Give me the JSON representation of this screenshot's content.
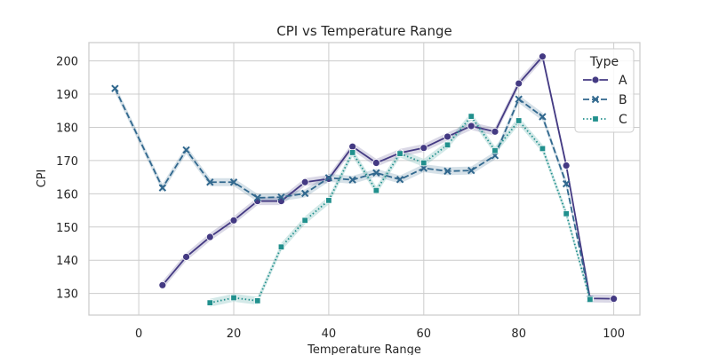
{
  "chart_data": {
    "type": "line",
    "title": "CPI vs Temperature Range",
    "xlabel": "Temperature Range",
    "ylabel": "CPI",
    "xlim": [
      -10.5,
      105.5
    ],
    "ylim": [
      123.5,
      205.5
    ],
    "xticks": [
      0,
      20,
      40,
      60,
      80,
      100
    ],
    "yticks": [
      130,
      140,
      150,
      160,
      170,
      180,
      190,
      200
    ],
    "grid": true,
    "legend": {
      "title": "Type",
      "position": "top-right"
    },
    "series": [
      {
        "name": "A",
        "color": "#443a83",
        "marker": "circle",
        "line_style": "solid",
        "points": [
          [
            5,
            132.5
          ],
          [
            10,
            141
          ],
          [
            15,
            147
          ],
          [
            20,
            152
          ],
          [
            25,
            157.8
          ],
          [
            30,
            157.8
          ],
          [
            35,
            163.5
          ],
          [
            40,
            164.5
          ],
          [
            45,
            174.2
          ],
          [
            50,
            169.3
          ],
          [
            55,
            172.3
          ],
          [
            60,
            173.8
          ],
          [
            65,
            177.2
          ],
          [
            70,
            180.4
          ],
          [
            75,
            178.7
          ],
          [
            80,
            193.2
          ],
          [
            85,
            201.3
          ],
          [
            90,
            168.5
          ],
          [
            95,
            128.5
          ],
          [
            100,
            128.4
          ]
        ]
      },
      {
        "name": "B",
        "color": "#31688e",
        "marker": "x",
        "line_style": "dashed",
        "points": [
          [
            -5,
            191.7
          ],
          [
            5,
            161.8
          ],
          [
            10,
            173.2
          ],
          [
            15,
            163.5
          ],
          [
            20,
            163.5
          ],
          [
            25,
            158.8
          ],
          [
            30,
            159
          ],
          [
            35,
            160.1
          ],
          [
            40,
            164.8
          ],
          [
            45,
            164.2
          ],
          [
            50,
            166.3
          ],
          [
            55,
            164.3
          ],
          [
            60,
            167.7
          ],
          [
            65,
            166.8
          ],
          [
            70,
            167
          ],
          [
            75,
            171.5
          ],
          [
            80,
            188.5
          ],
          [
            85,
            183.2
          ],
          [
            90,
            163
          ],
          [
            95,
            128.3
          ]
        ]
      },
      {
        "name": "C",
        "color": "#21908d",
        "marker": "square",
        "line_style": "dotted",
        "points": [
          [
            15,
            127.2
          ],
          [
            20,
            128.7
          ],
          [
            25,
            127.8
          ],
          [
            30,
            144
          ],
          [
            35,
            152
          ],
          [
            40,
            158
          ],
          [
            45,
            172.4
          ],
          [
            50,
            161
          ],
          [
            55,
            172.1
          ],
          [
            60,
            169.3
          ],
          [
            65,
            174.7
          ],
          [
            70,
            183.3
          ],
          [
            75,
            173
          ],
          [
            80,
            182
          ],
          [
            85,
            173.6
          ],
          [
            90,
            154
          ],
          [
            95,
            128.2
          ]
        ]
      }
    ]
  }
}
